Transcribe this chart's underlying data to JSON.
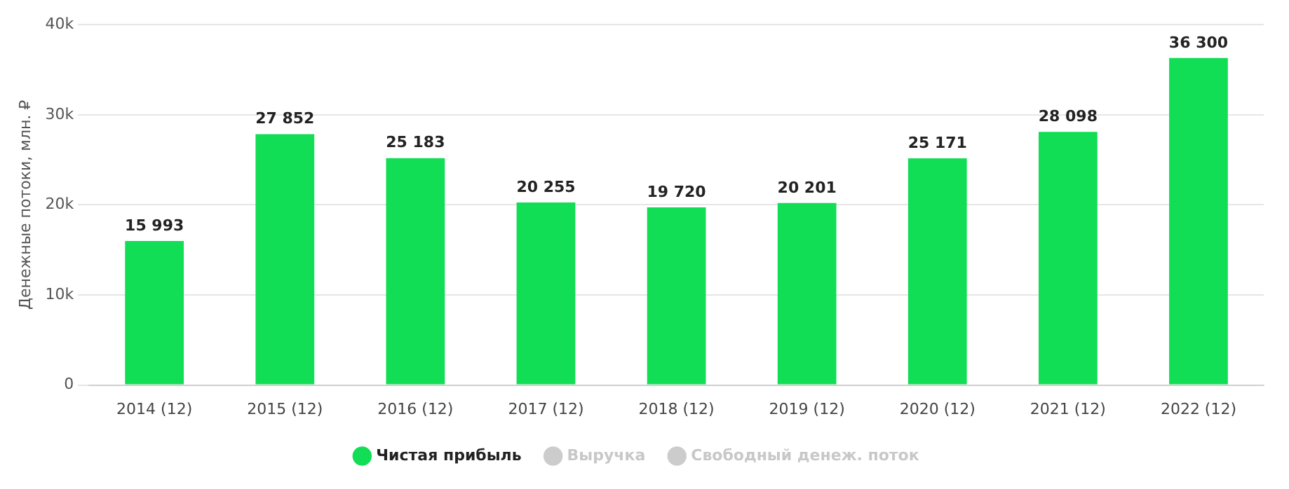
{
  "chart_data": {
    "type": "bar",
    "ylabel": "Денежные потоки, млн. ₽",
    "categories": [
      "2014 (12)",
      "2015 (12)",
      "2016 (12)",
      "2017 (12)",
      "2018 (12)",
      "2019 (12)",
      "2020 (12)",
      "2021 (12)",
      "2022 (12)"
    ],
    "series": [
      {
        "name": "Чистая прибыль",
        "color": "#11dd55",
        "values": [
          15993,
          27852,
          25183,
          20255,
          19720,
          20201,
          25171,
          28098,
          36300
        ],
        "value_labels": [
          "15 993",
          "27 852",
          "25 183",
          "20 255",
          "19 720",
          "20 201",
          "25 171",
          "28 098",
          "36 300"
        ]
      },
      {
        "name": "Выручка",
        "color": "#cccccc",
        "values": [
          null,
          null,
          null,
          null,
          null,
          null,
          null,
          null,
          null
        ]
      },
      {
        "name": "Свободный денеж. поток",
        "color": "#cccccc",
        "values": [
          null,
          null,
          null,
          null,
          null,
          null,
          null,
          null,
          null
        ]
      }
    ],
    "ylim": [
      0,
      40000
    ],
    "yticks": [
      {
        "value": 0,
        "label": "0"
      },
      {
        "value": 10000,
        "label": "10k"
      },
      {
        "value": 20000,
        "label": "20k"
      },
      {
        "value": 30000,
        "label": "30k"
      },
      {
        "value": 40000,
        "label": "40k"
      }
    ],
    "grid": "y",
    "legend": "bottom"
  }
}
